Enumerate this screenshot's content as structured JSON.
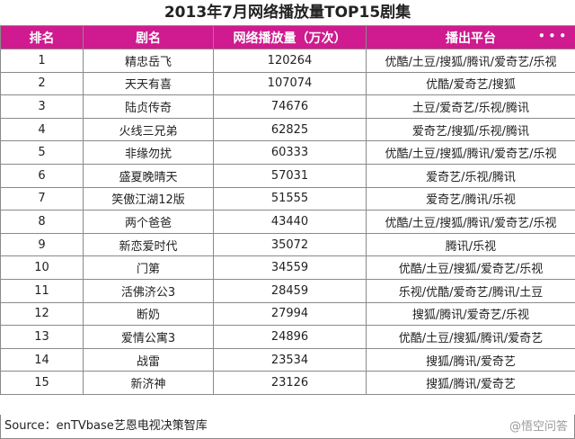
{
  "title": "2013年7月网络播放量TOP15剧集",
  "table": {
    "headers": [
      "排名",
      "剧名",
      "网络播放量（万次）",
      "播出平台"
    ],
    "rows": [
      [
        "1",
        "精忠岳飞",
        "120264",
        "优酷/土豆/搜狐/腾讯/爱奇艺/乐视"
      ],
      [
        "2",
        "天天有喜",
        "107074",
        "优酷/爱奇艺/搜狐"
      ],
      [
        "3",
        "陆贞传奇",
        "74676",
        "土豆/爱奇艺/乐视/腾讯"
      ],
      [
        "4",
        "火线三兄弟",
        "62825",
        "爱奇艺/搜狐/乐视/腾讯"
      ],
      [
        "5",
        "非缘勿扰",
        "60333",
        "优酷/土豆/搜狐/腾讯/爱奇艺/乐视"
      ],
      [
        "6",
        "盛夏晚晴天",
        "57031",
        "爱奇艺/乐视/腾讯"
      ],
      [
        "7",
        "笑傲江湖12版",
        "51555",
        "爱奇艺/腾讯/乐视"
      ],
      [
        "8",
        "两个爸爸",
        "43440",
        "优酷/土豆/搜狐/腾讯/爱奇艺/乐视"
      ],
      [
        "9",
        "新恋爱时代",
        "35072",
        "腾讯/乐视"
      ],
      [
        "10",
        "门第",
        "34559",
        "优酷/土豆/搜狐/爱奇艺/乐视"
      ],
      [
        "11",
        "活佛济公3",
        "28459",
        "乐视/优酷/爱奇艺/腾讯/土豆"
      ],
      [
        "12",
        "断奶",
        "27994",
        "搜狐/腾讯/爱奇艺/乐视"
      ],
      [
        "13",
        "爱情公寓3",
        "24896",
        "优酷/土豆/搜狐/腾讯/爱奇艺"
      ],
      [
        "14",
        "战雷",
        "23534",
        "搜狐/腾讯/爱奇艺"
      ],
      [
        "15",
        "新济神",
        "23126",
        "搜狐/腾讯/爱奇艺"
      ]
    ]
  },
  "source": "Source：enTVbase艺恩电视决策智库",
  "watermark": "@悟空问答",
  "header_dots": "•••",
  "colors": {
    "header_bg": "#cf1b8f",
    "header_text": "#ffffff"
  }
}
